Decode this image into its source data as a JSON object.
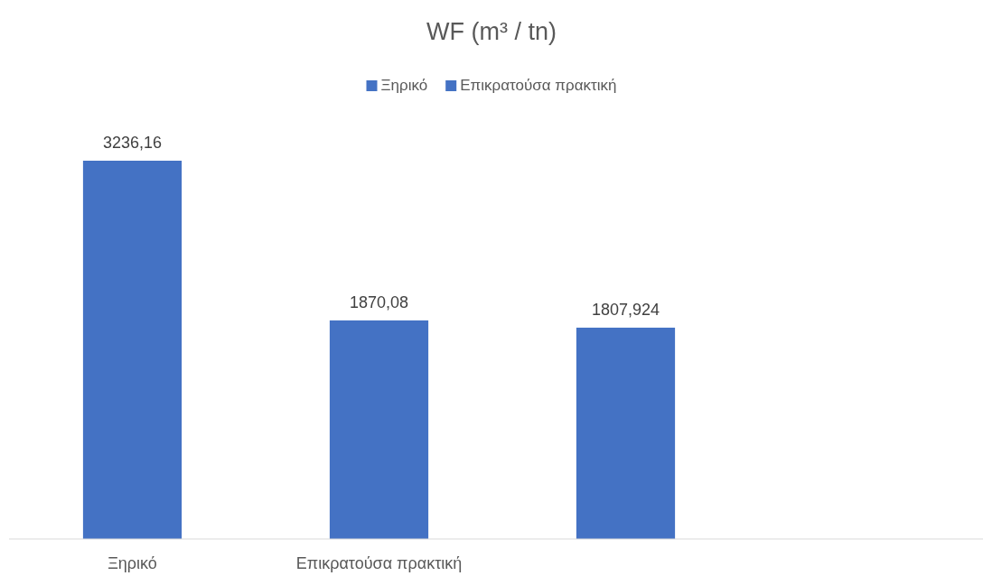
{
  "chart_data": {
    "type": "bar",
    "title": "WF (m³ / tn)",
    "categories": [
      "Ξηρικό",
      "Επικρατούσα πρακτική",
      null
    ],
    "series": [
      {
        "name": "Ξηρικό",
        "color": "#4472c4",
        "values": [
          3236.16,
          null,
          null
        ],
        "value_labels": [
          "3236,16",
          null,
          null
        ]
      },
      {
        "name": "Επικρατούσα πρακτική",
        "color": "#4472c4",
        "values": [
          null,
          1870.08,
          null
        ],
        "value_labels": [
          null,
          "1870,08",
          null
        ]
      },
      {
        "color": "#4472c4",
        "values": [
          null,
          null,
          1807.924
        ],
        "value_labels": [
          null,
          null,
          "1807,924"
        ]
      }
    ],
    "legend": "top"
  }
}
